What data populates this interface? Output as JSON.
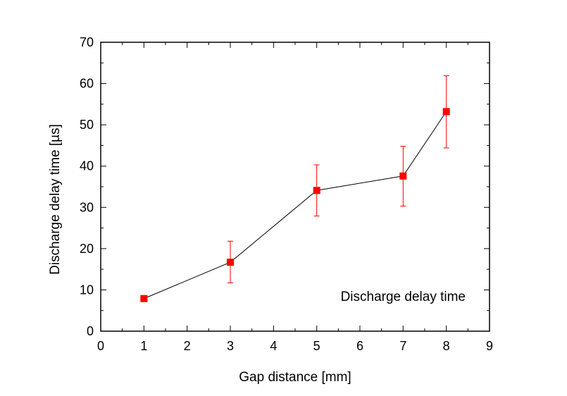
{
  "chart_data": {
    "type": "line",
    "title": "",
    "xlabel": "Gap distance [mm]",
    "ylabel": "Discharge delay time [µs]",
    "xlim": [
      0,
      9
    ],
    "ylim": [
      0,
      70
    ],
    "x_ticks": [
      "0",
      "1",
      "2",
      "3",
      "4",
      "5",
      "6",
      "7",
      "8",
      "9"
    ],
    "y_ticks": [
      "0",
      "10",
      "20",
      "30",
      "40",
      "50",
      "60",
      "70"
    ],
    "grid": false,
    "legend_position": "bottom-right",
    "series": [
      {
        "name": "Discharge delay time",
        "color": "#ff0000",
        "line_color": "#000000",
        "marker": "square",
        "x": [
          1,
          3,
          5,
          7,
          8
        ],
        "y": [
          7.9,
          16.7,
          34.1,
          37.6,
          53.2
        ],
        "err_low": [
          7.9,
          11.7,
          27.9,
          30.3,
          44.4
        ],
        "err_high": [
          7.9,
          21.8,
          40.3,
          44.8,
          61.9
        ]
      }
    ]
  }
}
